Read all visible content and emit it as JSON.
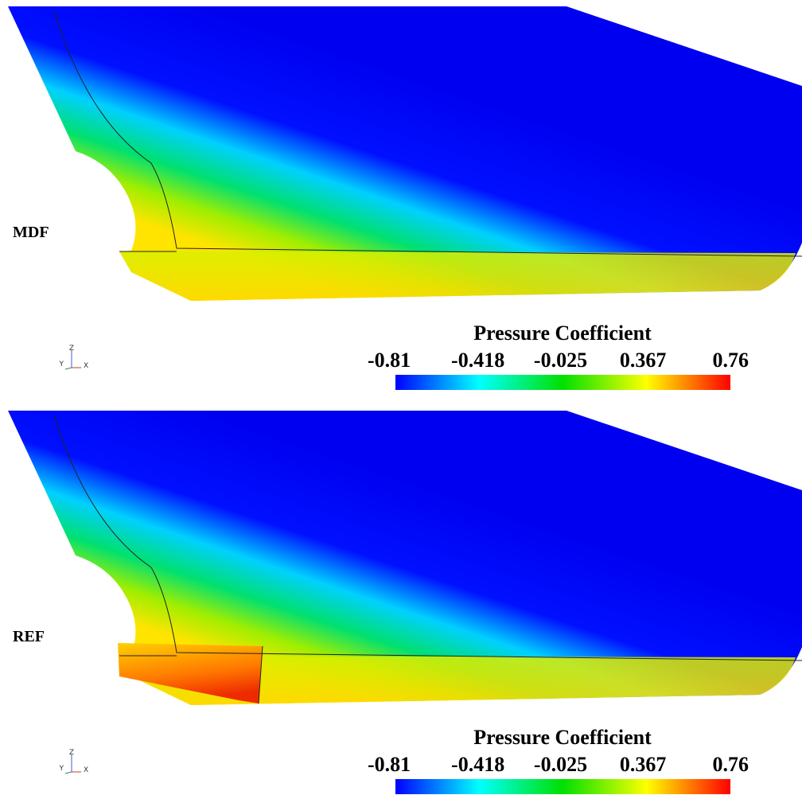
{
  "panels": [
    {
      "label": "MDF",
      "colorbar": {
        "title": "Pressure Coefficient",
        "ticks": [
          -0.81,
          -0.418,
          -0.025,
          0.367,
          0.76
        ]
      },
      "axes": {
        "z": "Z",
        "y": "Y",
        "x": "X"
      }
    },
    {
      "label": "REF",
      "colorbar": {
        "title": "Pressure Coefficient",
        "ticks": [
          -0.81,
          -0.418,
          -0.025,
          0.367,
          0.76
        ]
      },
      "axes": {
        "z": "Z",
        "y": "Y",
        "x": "X"
      }
    }
  ]
}
